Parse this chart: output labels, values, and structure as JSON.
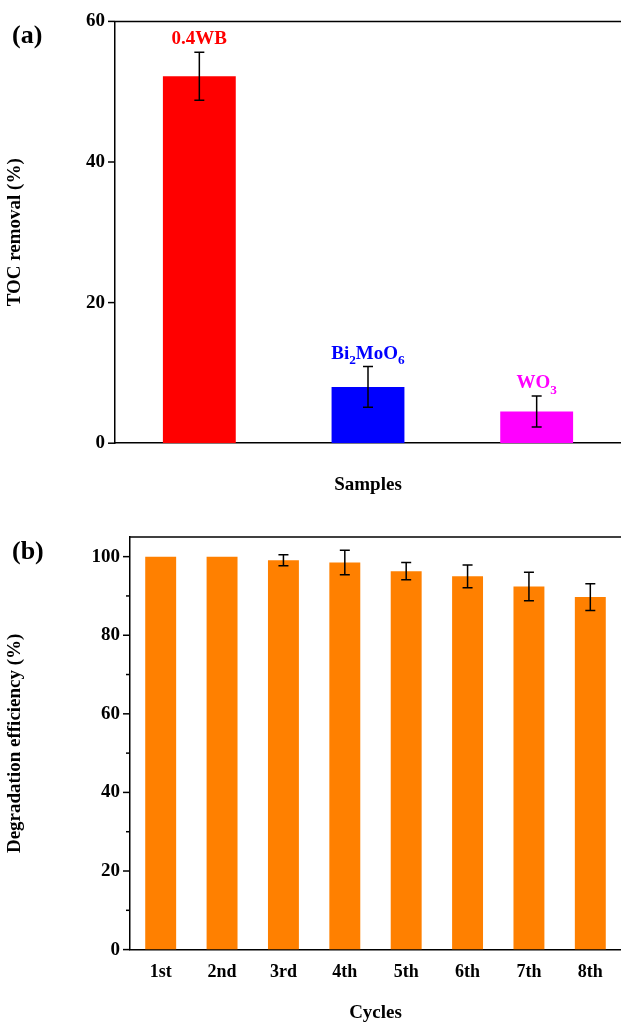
{
  "chart_data": [
    {
      "type": "bar",
      "title": "(a)",
      "xlabel": "Samples",
      "ylabel": "TOC removal (%)",
      "categories": [
        "0.4WB",
        "Bi$_{2}$MoO$_{6}$",
        "WO$_{3}$"
      ],
      "values": [
        52.2,
        8.0,
        4.5
      ],
      "errors": [
        3.4,
        2.9,
        2.2
      ],
      "colors": [
        "#ff0000",
        "#0000ff",
        "#ff00ff"
      ],
      "ylim": [
        0,
        60
      ],
      "yticks": [
        0,
        20,
        40,
        60
      ],
      "grid": false,
      "legend": false,
      "tick_labels": "y"
    },
    {
      "type": "bar",
      "title": "(b)",
      "xlabel": "Cycles",
      "ylabel": "Degradation efficiency (%)",
      "categories": [
        "1st",
        "2nd",
        "3rd",
        "4th",
        "5th",
        "6th",
        "7th",
        "8th"
      ],
      "values": [
        100,
        100,
        99.1,
        98.5,
        96.3,
        95.0,
        92.4,
        89.7
      ],
      "errors": [
        null,
        null,
        1.4,
        3.1,
        2.2,
        2.9,
        3.6,
        3.4
      ],
      "color": "#ff8000",
      "ylim": [
        0,
        105
      ],
      "yticks": [
        0,
        {
          "value": 10,
          "label": null
        },
        20,
        {
          "value": 30,
          "label": null
        },
        40,
        {
          "value": 50,
          "label": null
        },
        60,
        {
          "value": 70,
          "label": null
        },
        80,
        {
          "value": 90,
          "label": null
        },
        100
      ],
      "grid": false,
      "legend": false
    }
  ]
}
